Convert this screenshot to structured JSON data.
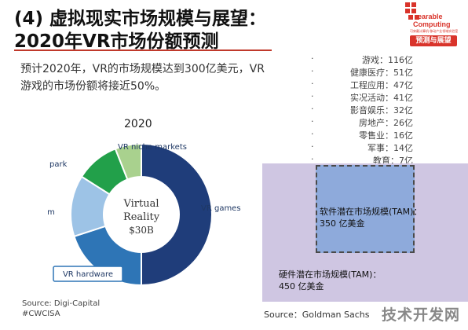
{
  "slide": {
    "title_line1": "(4) 虚拟现实市场规模与展望：",
    "title_line2": "2020年VR市场份额预测",
    "intro": "预计2020年，VR的市场规模达到300亿美元，VR游戏的市场份额将接近50%。"
  },
  "logo": {
    "word1": "earable",
    "word2": "Computing",
    "small": "可穿戴计算机·移动产业领域实验室",
    "badge": "预测与展望"
  },
  "legend": {
    "bullet": "·",
    "items": [
      "游戏：116亿",
      "健康医疗：51亿",
      "工程应用：47亿",
      "实况活动：41亿",
      "影音娱乐：32亿",
      "房地产：26亿",
      "零售业：16亿",
      "军事：14亿",
      "教育：7亿"
    ]
  },
  "chart_data": {
    "type": "pie",
    "title": "2020",
    "center_text": [
      "Virtual",
      "Reality",
      "$30B"
    ],
    "slices": [
      {
        "label": "VR games",
        "value": 50,
        "color": "#1f3d7a"
      },
      {
        "label": "VR hardware",
        "value": 20,
        "color": "#2e75b6"
      },
      {
        "label": "VR film",
        "value": 14,
        "color": "#9dc3e6"
      },
      {
        "label": "VR theme park",
        "value": 10,
        "color": "#22a04a"
      },
      {
        "label": "VR niche markets",
        "value": 6,
        "color": "#a9d18e"
      }
    ],
    "hardware_box_color": "#2e75b6",
    "source": "Source: Digi-Capital",
    "tag": "#CWCISA"
  },
  "market": {
    "software_label": "软件潜在市场规模(TAM)：",
    "software_value": "350 亿美金",
    "hardware_label": "硬件潜在市场规模(TAM)：",
    "hardware_value": "450 亿美金",
    "source": "Source：Goldman Sachs",
    "colors": {
      "hardware": "#cfc6e2",
      "software": "#8eaadb"
    }
  },
  "watermark": "技术开发网"
}
